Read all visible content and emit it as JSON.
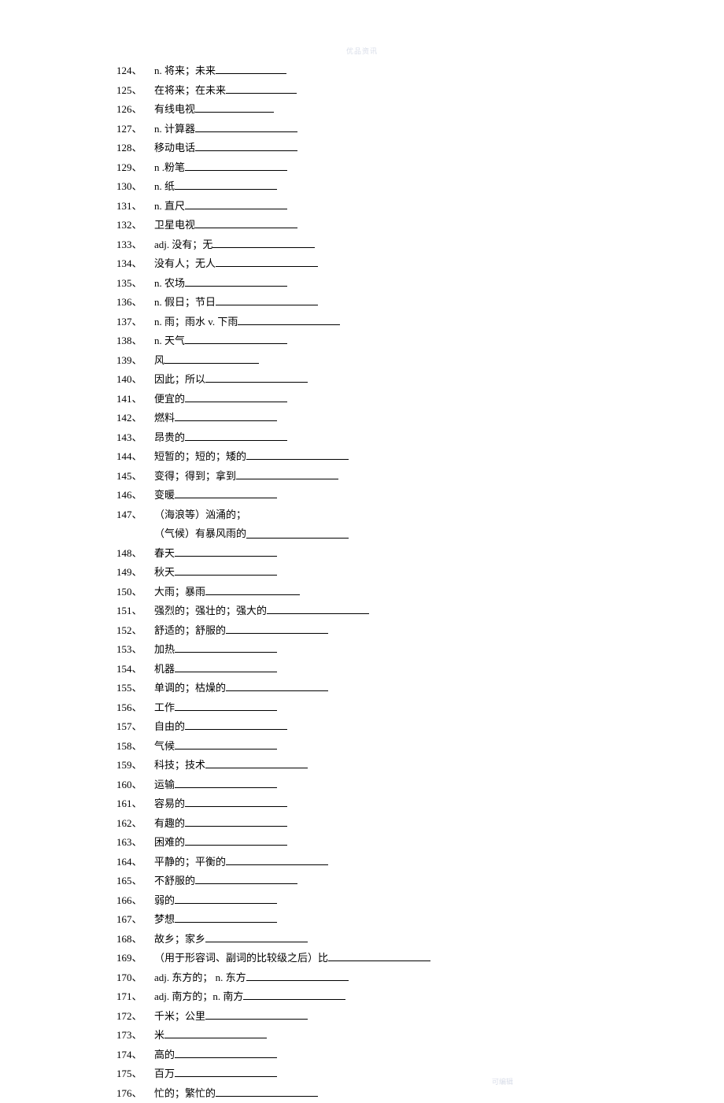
{
  "watermark_top": "优品资讯",
  "watermark_bottom": "可编辑",
  "blank_width_default": 120,
  "items": [
    {
      "num": "124、",
      "text": "n. 将来；未来",
      "blank": 90
    },
    {
      "num": "125、",
      "text": "在将来；在未来",
      "blank": 90
    },
    {
      "num": "126、",
      "text": "有线电视",
      "blank": 100
    },
    {
      "num": "127、",
      "text": "n. 计算器",
      "blank": 130
    },
    {
      "num": "128、",
      "text": "移动电话",
      "blank": 130
    },
    {
      "num": "129、",
      "text": "n .粉笔",
      "blank": 130
    },
    {
      "num": "130、",
      "text": "n. 纸",
      "blank": 130
    },
    {
      "num": "131、",
      "text": "n. 直尺",
      "blank": 130
    },
    {
      "num": "132、",
      "text": "卫星电视",
      "blank": 130
    },
    {
      "num": "133、",
      "text": "adj. 没有；无",
      "blank": 130
    },
    {
      "num": "134、",
      "text": "没有人；无人",
      "blank": 130
    },
    {
      "num": "135、",
      "text": "n. 农场",
      "blank": 130
    },
    {
      "num": "136、",
      "text": "n. 假日；节日",
      "blank": 130
    },
    {
      "num": "137、",
      "text": "n. 雨；雨水 v. 下雨",
      "blank": 130
    },
    {
      "num": "138、",
      "text": "n. 天气",
      "blank": 130
    },
    {
      "num": "139、",
      "text": "风",
      "blank": 120
    },
    {
      "num": "140、",
      "text": "因此；所以",
      "blank": 130
    },
    {
      "num": "141、",
      "text": "便宜的",
      "blank": 130
    },
    {
      "num": "142、",
      "text": "燃料",
      "blank": 130
    },
    {
      "num": "143、",
      "text": "昂贵的",
      "blank": 130
    },
    {
      "num": "144、",
      "text": "短暂的；短的；矮的",
      "blank": 130
    },
    {
      "num": "145、",
      "text": "变得；得到；拿到",
      "blank": 130
    },
    {
      "num": "146、",
      "text": "变暖",
      "blank": 130
    },
    {
      "num": "147、",
      "text": "（海浪等）汹涌的；",
      "blank": 0,
      "sub": "（气候）有暴风雨的",
      "sub_blank": 130
    },
    {
      "num": "148、",
      "text": "春天",
      "blank": 130
    },
    {
      "num": "149、",
      "text": "秋天",
      "blank": 130
    },
    {
      "num": "150、",
      "text": "大雨；暴雨",
      "blank": 120
    },
    {
      "num": "151、",
      "text": "强烈的；强壮的；强大的",
      "blank": 130
    },
    {
      "num": "152、",
      "text": "舒适的；舒服的",
      "blank": 130
    },
    {
      "num": "153、",
      "text": "加热",
      "blank": 130
    },
    {
      "num": "154、",
      "text": "机器",
      "blank": 130
    },
    {
      "num": "155、",
      "text": "单调的；枯燥的",
      "blank": 130
    },
    {
      "num": "156、",
      "text": "工作",
      "blank": 130
    },
    {
      "num": "157、",
      "text": "自由的",
      "blank": 130
    },
    {
      "num": "158、",
      "text": "气候 ",
      "blank": 130
    },
    {
      "num": "159、",
      "text": "科技；技术",
      "blank": 130
    },
    {
      "num": "160、",
      "text": "运输",
      "blank": 130
    },
    {
      "num": "161、",
      "text": "容易的",
      "blank": 130
    },
    {
      "num": "162、",
      "text": "有趣的",
      "blank": 130
    },
    {
      "num": "163、",
      "text": "困难的",
      "blank": 130
    },
    {
      "num": "164、",
      "text": "平静的；平衡的",
      "blank": 130
    },
    {
      "num": "165、",
      "text": "不舒服的",
      "blank": 130
    },
    {
      "num": "166、",
      "text": "弱的",
      "blank": 130
    },
    {
      "num": "167、",
      "text": "梦想",
      "blank": 130
    },
    {
      "num": "168、",
      "text": "故乡；家乡",
      "blank": 130
    },
    {
      "num": "169、",
      "text": "（用于形容词、副词的比较级之后）比",
      "blank": 130
    },
    {
      "num": "170、",
      "text": "adj.  东方的； n. 东方",
      "blank": 130
    },
    {
      "num": "171、",
      "text": "adj. 南方的；n. 南方",
      "blank": 130
    },
    {
      "num": "172、",
      "text": "千米；公里",
      "blank": 130
    },
    {
      "num": "173、",
      "text": "米",
      "blank": 130
    },
    {
      "num": "174、",
      "text": "高的",
      "blank": 130
    },
    {
      "num": "175、",
      "text": "百万",
      "blank": 130
    },
    {
      "num": "176、",
      "text": "忙的；繁忙的",
      "blank": 130
    }
  ]
}
